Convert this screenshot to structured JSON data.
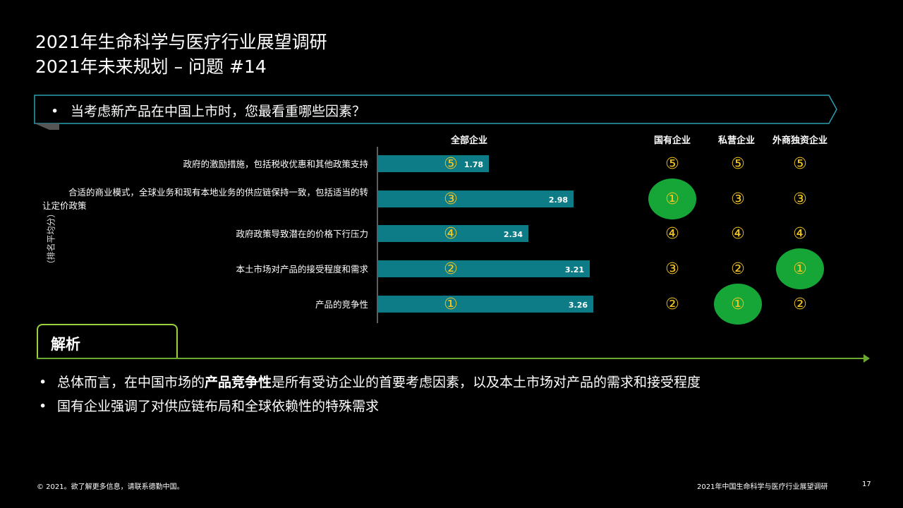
{
  "header": {
    "title_line1": "2021年生命科学与医疗行业展望调研",
    "title_line2": "2021年未来规划 – 问题 #14"
  },
  "question": {
    "bullet": "•",
    "text": "当考虑新产品在中国上市时，您最看重哪些因素？"
  },
  "columns": {
    "all": "全部企业",
    "soe": "国有企业",
    "private": "私营企业",
    "foreign": "外商独资企业"
  },
  "ylabel": "（排名平均分）",
  "chart_data": {
    "type": "bar",
    "orientation": "horizontal",
    "categories": [
      "政府的激励措施，包括税收优惠和其他政策支持",
      "合适的商业模式，全球业务和现有本地业务的供应链保持一致，包括适当的转让定价政策",
      "政府政策导致潜在的价格下行压力",
      "本土市场对产品的接受程度和需求",
      "产品的竞争性"
    ],
    "category_lines": [
      [
        "政府的激励措施，包括税收优惠和其他政策支持"
      ],
      [
        "合适的商业模式，全球业务和现有本地业务的供应链保持一致，包括适当的转",
        "让定价政策"
      ],
      [
        "政府政策导致潜在的价格下行压力"
      ],
      [
        "本土市场对产品的接受程度和需求"
      ],
      [
        "产品的竞争性"
      ]
    ],
    "values": [
      1.78,
      2.98,
      2.34,
      3.21,
      3.26
    ],
    "value_labels": [
      "1.78",
      "2.98",
      "2.34",
      "3.21",
      "3.26"
    ],
    "xlim": [
      0,
      5
    ],
    "bar_color": "#0e7c86",
    "ranks": {
      "all": [
        "⑤",
        "③",
        "④",
        "②",
        "①"
      ],
      "soe": [
        "⑤",
        "①",
        "④",
        "③",
        "②"
      ],
      "private": [
        "⑤",
        "③",
        "④",
        "②",
        "①"
      ],
      "foreign": [
        "⑤",
        "③",
        "④",
        "①",
        "②"
      ]
    },
    "highlight": {
      "soe": [
        false,
        true,
        false,
        false,
        false
      ],
      "private": [
        false,
        false,
        false,
        false,
        true
      ],
      "foreign": [
        false,
        false,
        false,
        true,
        false
      ]
    },
    "rank_color": "#f3c623",
    "highlight_color": "#16a637"
  },
  "analysis": {
    "label": "解析",
    "bullets": [
      {
        "dot": "•",
        "pre": "总体而言，在中国市场的",
        "bold": "产品竞争性",
        "post": "是所有受访企业的首要考虑因素，以及本土市场对产品的需求和接受程度"
      },
      {
        "dot": "•",
        "pre": "国有企业强调了对供应链布局和全球依赖性的特殊需求",
        "bold": "",
        "post": ""
      }
    ]
  },
  "footer": {
    "copyright": "© 2021。欲了解更多信息，请联系德勤中国。",
    "report": "2021年中国生命科学与医疗行业展望调研",
    "page": "17"
  }
}
